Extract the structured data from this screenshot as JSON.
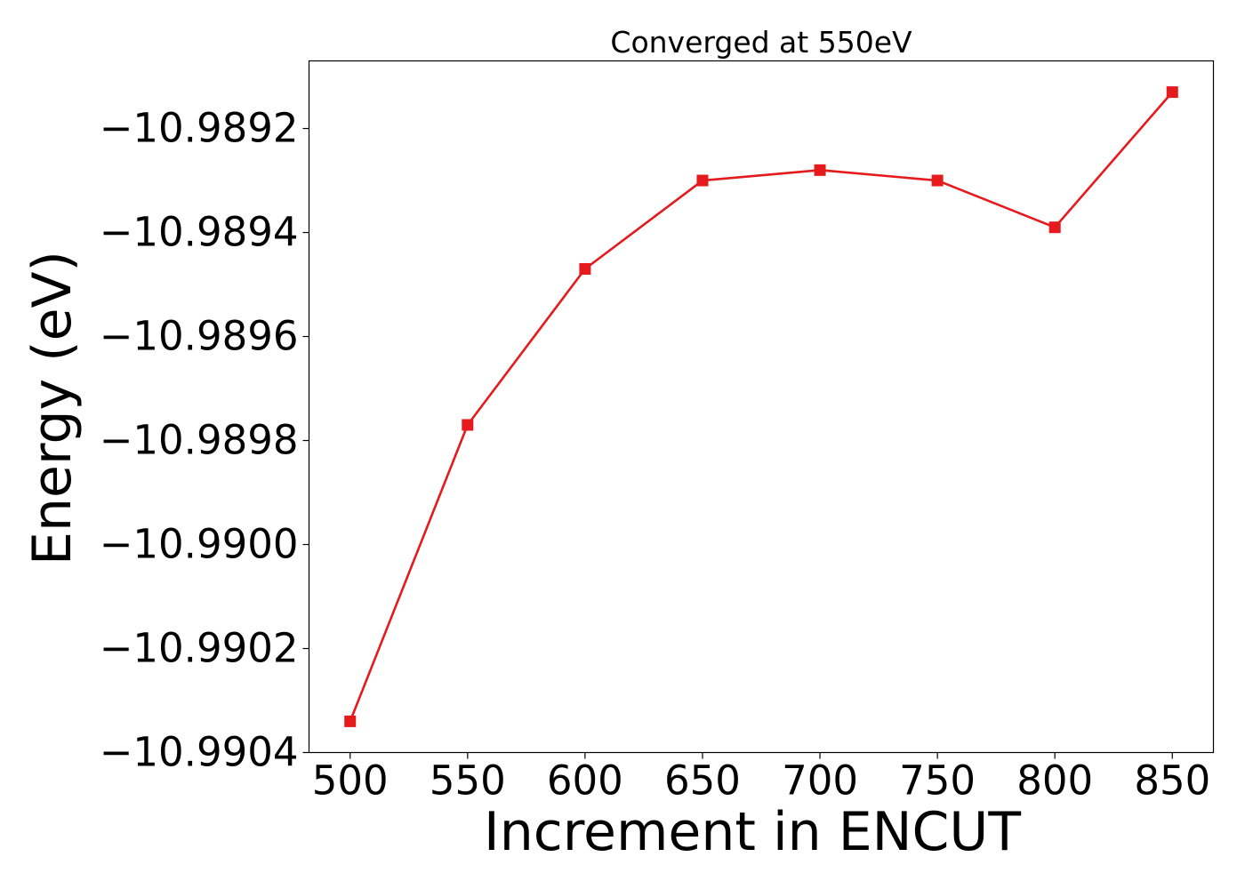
{
  "chart_data": {
    "type": "line",
    "title": "Converged at 550eV",
    "xlabel": "Increment in ENCUT",
    "ylabel": "Energy (eV)",
    "x": [
      500,
      550,
      600,
      650,
      700,
      750,
      800,
      850
    ],
    "series": [
      {
        "values": [
          -10.99034,
          -10.98977,
          -10.98947,
          -10.9893,
          -10.98928,
          -10.9893,
          -10.98939,
          -10.98913
        ],
        "color": "#e41a1c",
        "marker": "square"
      }
    ],
    "x_ticks": [
      500,
      550,
      600,
      650,
      700,
      750,
      800,
      850
    ],
    "x_tick_labels": [
      "500",
      "550",
      "600",
      "650",
      "700",
      "750",
      "800",
      "850"
    ],
    "y_ticks": [
      -10.9904,
      -10.9902,
      -10.99,
      -10.9898,
      -10.9896,
      -10.9894,
      -10.9892
    ],
    "y_tick_labels": [
      "−10.9904",
      "−10.9902",
      "−10.9900",
      "−10.9898",
      "−10.9896",
      "−10.9894",
      "−10.9892"
    ],
    "xlim": [
      482.5,
      867.5
    ],
    "ylim": [
      -10.9904,
      -10.98907
    ],
    "grid": false,
    "legend": "none"
  }
}
